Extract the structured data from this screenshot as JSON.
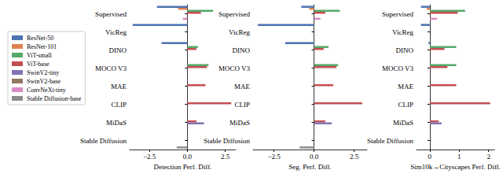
{
  "chart_data": [
    {
      "type": "bar",
      "orientation": "horizontal",
      "legend": "left",
      "x_label": "Detection Perf. Diff.",
      "categories": [
        "Supervised",
        "VicReg",
        "DINO",
        "MOCO V3",
        "MAE",
        "CLIP",
        "MiDaS",
        "Stable Diffusion"
      ],
      "xlim": [
        -3.8,
        3.2
      ],
      "xticks": [
        {
          "value": -2.5,
          "label": "−2.5"
        },
        {
          "value": 0,
          "label": "0.0"
        },
        {
          "value": 2.5,
          "label": "2.5"
        }
      ],
      "series": [
        {
          "name": "ResNet-50",
          "color": "#4c72b0",
          "values": [
            -2.0,
            -3.6,
            -1.7,
            null,
            null,
            null,
            null,
            null
          ]
        },
        {
          "name": "ResNet-101",
          "color": "#dd8452",
          "values": [
            -0.6,
            null,
            null,
            null,
            null,
            null,
            null,
            null
          ]
        },
        {
          "name": "ViT-small",
          "color": "#55a868",
          "values": [
            1.7,
            null,
            0.7,
            1.4,
            null,
            null,
            null,
            null
          ]
        },
        {
          "name": "ViT-base",
          "color": "#c44e52",
          "values": [
            0.9,
            null,
            0.6,
            1.3,
            1.2,
            2.9,
            0.6,
            null
          ]
        },
        {
          "name": "SwinV2-tiny",
          "color": "#8172b3",
          "values": [
            null,
            null,
            null,
            null,
            null,
            null,
            1.1,
            null
          ]
        },
        {
          "name": "SwinV2-base",
          "color": "#937860",
          "values": [
            null,
            null,
            null,
            null,
            null,
            null,
            null,
            null
          ]
        },
        {
          "name": "ConvNeXt-tiny",
          "color": "#da8bc3",
          "values": [
            -0.3,
            null,
            null,
            null,
            null,
            null,
            null,
            null
          ]
        },
        {
          "name": "Stable Diffusion-base",
          "color": "#8c8c8c",
          "values": [
            null,
            null,
            null,
            null,
            null,
            null,
            null,
            -0.7
          ]
        }
      ]
    },
    {
      "type": "bar",
      "orientation": "horizontal",
      "x_label": "Seg. Perf. Diff.",
      "categories": [
        "Supervised",
        "VicReg",
        "DINO",
        "MOCO V3",
        "MAE",
        "CLIP",
        "MiDaS",
        "Stable Diffusion"
      ],
      "xlim": [
        -3.8,
        3.3
      ],
      "xticks": [
        {
          "value": -2.5,
          "label": "−2.5"
        },
        {
          "value": 0,
          "label": "0.0"
        },
        {
          "value": 2.5,
          "label": "2.5"
        }
      ],
      "series": [
        {
          "name": "ResNet-50",
          "color": "#4c72b0",
          "values": [
            -0.8,
            -3.5,
            -1.8,
            null,
            null,
            null,
            null,
            null
          ]
        },
        {
          "name": "ResNet-101",
          "color": "#dd8452",
          "values": [
            -0.3,
            null,
            null,
            null,
            null,
            null,
            null,
            null
          ]
        },
        {
          "name": "ViT-small",
          "color": "#55a868",
          "values": [
            1.6,
            null,
            0.9,
            1.5,
            null,
            null,
            null,
            null
          ]
        },
        {
          "name": "ViT-base",
          "color": "#c44e52",
          "values": [
            0.7,
            null,
            0.6,
            1.4,
            1.2,
            3.0,
            0.7,
            null
          ]
        },
        {
          "name": "SwinV2-tiny",
          "color": "#8172b3",
          "values": [
            null,
            null,
            null,
            null,
            null,
            null,
            1.1,
            null
          ]
        },
        {
          "name": "SwinV2-base",
          "color": "#937860",
          "values": [
            null,
            null,
            null,
            null,
            null,
            null,
            null,
            null
          ]
        },
        {
          "name": "ConvNeXt-tiny",
          "color": "#da8bc3",
          "values": [
            0.4,
            null,
            null,
            null,
            null,
            null,
            null,
            null
          ]
        },
        {
          "name": "Stable Diffusion-base",
          "color": "#8c8c8c",
          "values": [
            null,
            null,
            null,
            null,
            null,
            null,
            null,
            -0.9
          ]
        }
      ]
    },
    {
      "type": "bar",
      "orientation": "horizontal",
      "x_label": "Sim10k→Cityscapes Perf. Diff.",
      "categories": [
        "Supervised",
        "VicReg",
        "DINO",
        "MOCO V3",
        "MAE",
        "CLIP",
        "MiDaS",
        "Stable Diffusion"
      ],
      "xlim": [
        -0.45,
        2.2
      ],
      "xticks": [
        0,
        1,
        2
      ],
      "series": [
        {
          "name": "ResNet-50",
          "color": "#4c72b0",
          "values": [
            -0.3,
            -0.3,
            -0.05,
            null,
            null,
            null,
            null,
            null
          ]
        },
        {
          "name": "ResNet-101",
          "color": "#dd8452",
          "values": [
            -0.1,
            null,
            null,
            null,
            null,
            null,
            null,
            null
          ]
        },
        {
          "name": "ViT-small",
          "color": "#55a868",
          "values": [
            1.2,
            null,
            0.9,
            0.9,
            null,
            null,
            null,
            null
          ]
        },
        {
          "name": "ViT-base",
          "color": "#c44e52",
          "values": [
            0.95,
            null,
            0.5,
            0.6,
            0.9,
            2.05,
            0.3,
            null
          ]
        },
        {
          "name": "SwinV2-tiny",
          "color": "#8172b3",
          "values": [
            null,
            null,
            null,
            null,
            null,
            null,
            0.4,
            null
          ]
        },
        {
          "name": "SwinV2-base",
          "color": "#937860",
          "values": [
            null,
            null,
            null,
            null,
            null,
            null,
            null,
            null
          ]
        },
        {
          "name": "ConvNeXt-tiny",
          "color": "#da8bc3",
          "values": [
            0.25,
            null,
            null,
            null,
            null,
            null,
            null,
            null
          ]
        },
        {
          "name": "Stable Diffusion-base",
          "color": "#8c8c8c",
          "values": [
            null,
            null,
            null,
            null,
            null,
            null,
            null,
            null
          ]
        }
      ]
    }
  ]
}
